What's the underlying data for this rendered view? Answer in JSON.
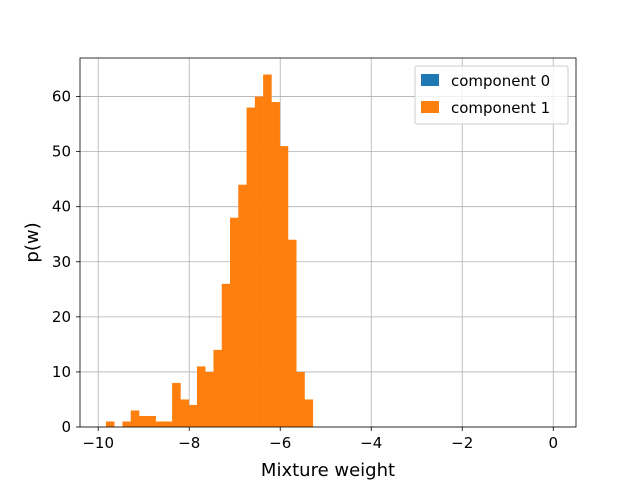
{
  "chart_data": {
    "type": "histogram",
    "xlabel": "Mixture weight",
    "ylabel": "p(w)",
    "xlim": [
      -10.4,
      0.5
    ],
    "ylim": [
      0,
      67
    ],
    "xticks": [
      -10,
      -8,
      -6,
      -4,
      -2,
      0
    ],
    "xtick_labels": [
      "−10",
      "−8",
      "−6",
      "−4",
      "−2",
      "0"
    ],
    "yticks": [
      0,
      10,
      20,
      30,
      40,
      50,
      60
    ],
    "ytick_labels": [
      "0",
      "10",
      "20",
      "30",
      "40",
      "50",
      "60"
    ],
    "grid": true,
    "legend_position": "upper right",
    "series": [
      {
        "name": "component 0",
        "color": "#1f77b4",
        "bins": [],
        "counts": []
      },
      {
        "name": "component 1",
        "color": "#ff7f0e",
        "bin_start": -9.83,
        "bin_width": 0.1818,
        "counts": [
          1,
          0,
          1,
          3,
          2,
          2,
          1,
          1,
          8,
          5,
          4,
          11,
          10,
          14,
          26,
          38,
          44,
          58,
          60,
          64,
          59,
          51,
          34,
          10,
          5
        ]
      }
    ]
  }
}
